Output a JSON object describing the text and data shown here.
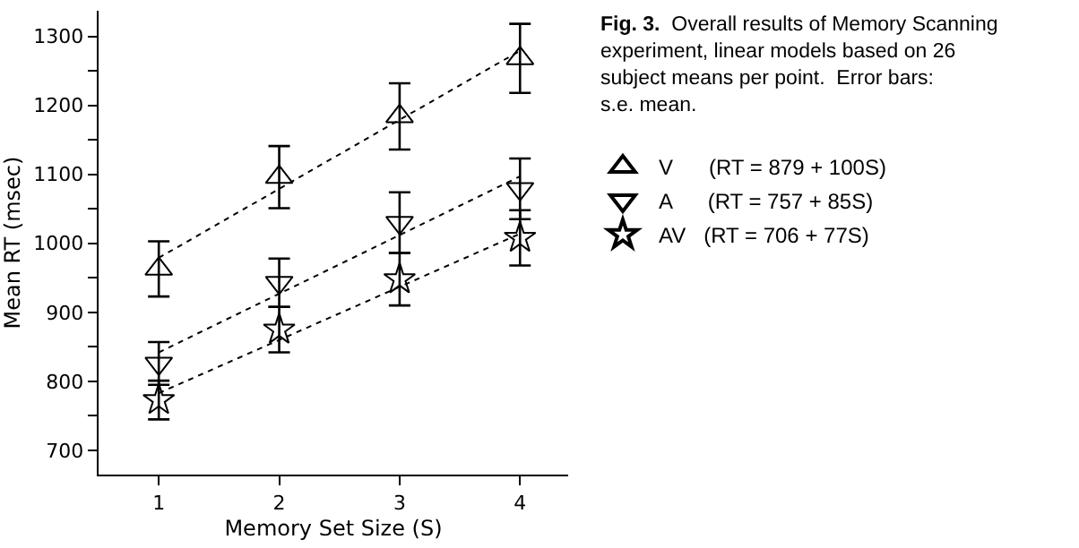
{
  "chart_data": {
    "type": "scatter",
    "title": "Fig. 3.",
    "subtitle": "Overall results of Memory Scanning experiment, linear models based on 26 subject means per point.  Error bars:  s.e. mean.",
    "xlabel": "Memory Set Size (S)",
    "ylabel": "Mean RT (msec)",
    "x": [
      1,
      2,
      3,
      4
    ],
    "series": [
      {
        "name": "V      (RT = 879 + 100S)",
        "color": "#000000",
        "marker": "triangle",
        "values": [
          963,
          1096,
          1184,
          1268
        ],
        "errors": [
          40,
          45,
          48,
          50
        ]
      },
      {
        "name": "A      (RT = 757 + 85S)",
        "color": "#000000",
        "marker": "triangle-down",
        "values": [
          826,
          943,
          1030,
          1079
        ],
        "errors": [
          31,
          35,
          44,
          44
        ]
      },
      {
        "name": "AV   (RT = 706 + 77S)",
        "color": "#000000",
        "marker": "star",
        "values": [
          773,
          875,
          948,
          1008
        ],
        "errors": [
          28,
          33,
          38,
          40
        ]
      },
      {
        "type": "line",
        "color": "#000000",
        "line_style": "dotted",
        "marker": "none",
        "values": [
          979,
          1079,
          1179,
          1279
        ]
      },
      {
        "type": "line",
        "color": "#000000",
        "line_style": "dotted",
        "marker": "none",
        "values": [
          842,
          927,
          1012,
          1097
        ]
      },
      {
        "type": "line",
        "color": "#000000",
        "line_style": "dotted",
        "marker": "none",
        "values": [
          783,
          860,
          937,
          1014
        ]
      }
    ],
    "xlim": [
      0.5,
      4.4
    ],
    "xticks": [
      1,
      2,
      3,
      4
    ],
    "ylim": [
      665,
      1337
    ],
    "yticks": [
      700,
      {
        "value": 750,
        "label": null
      },
      800,
      {
        "value": 850,
        "label": null
      },
      900,
      {
        "value": 950,
        "label": null
      },
      1000,
      {
        "value": 1050,
        "label": null
      },
      1100,
      {
        "value": 1150,
        "label": null
      },
      1200,
      {
        "value": 1250,
        "label": null
      },
      1300
    ],
    "legend": "right"
  }
}
